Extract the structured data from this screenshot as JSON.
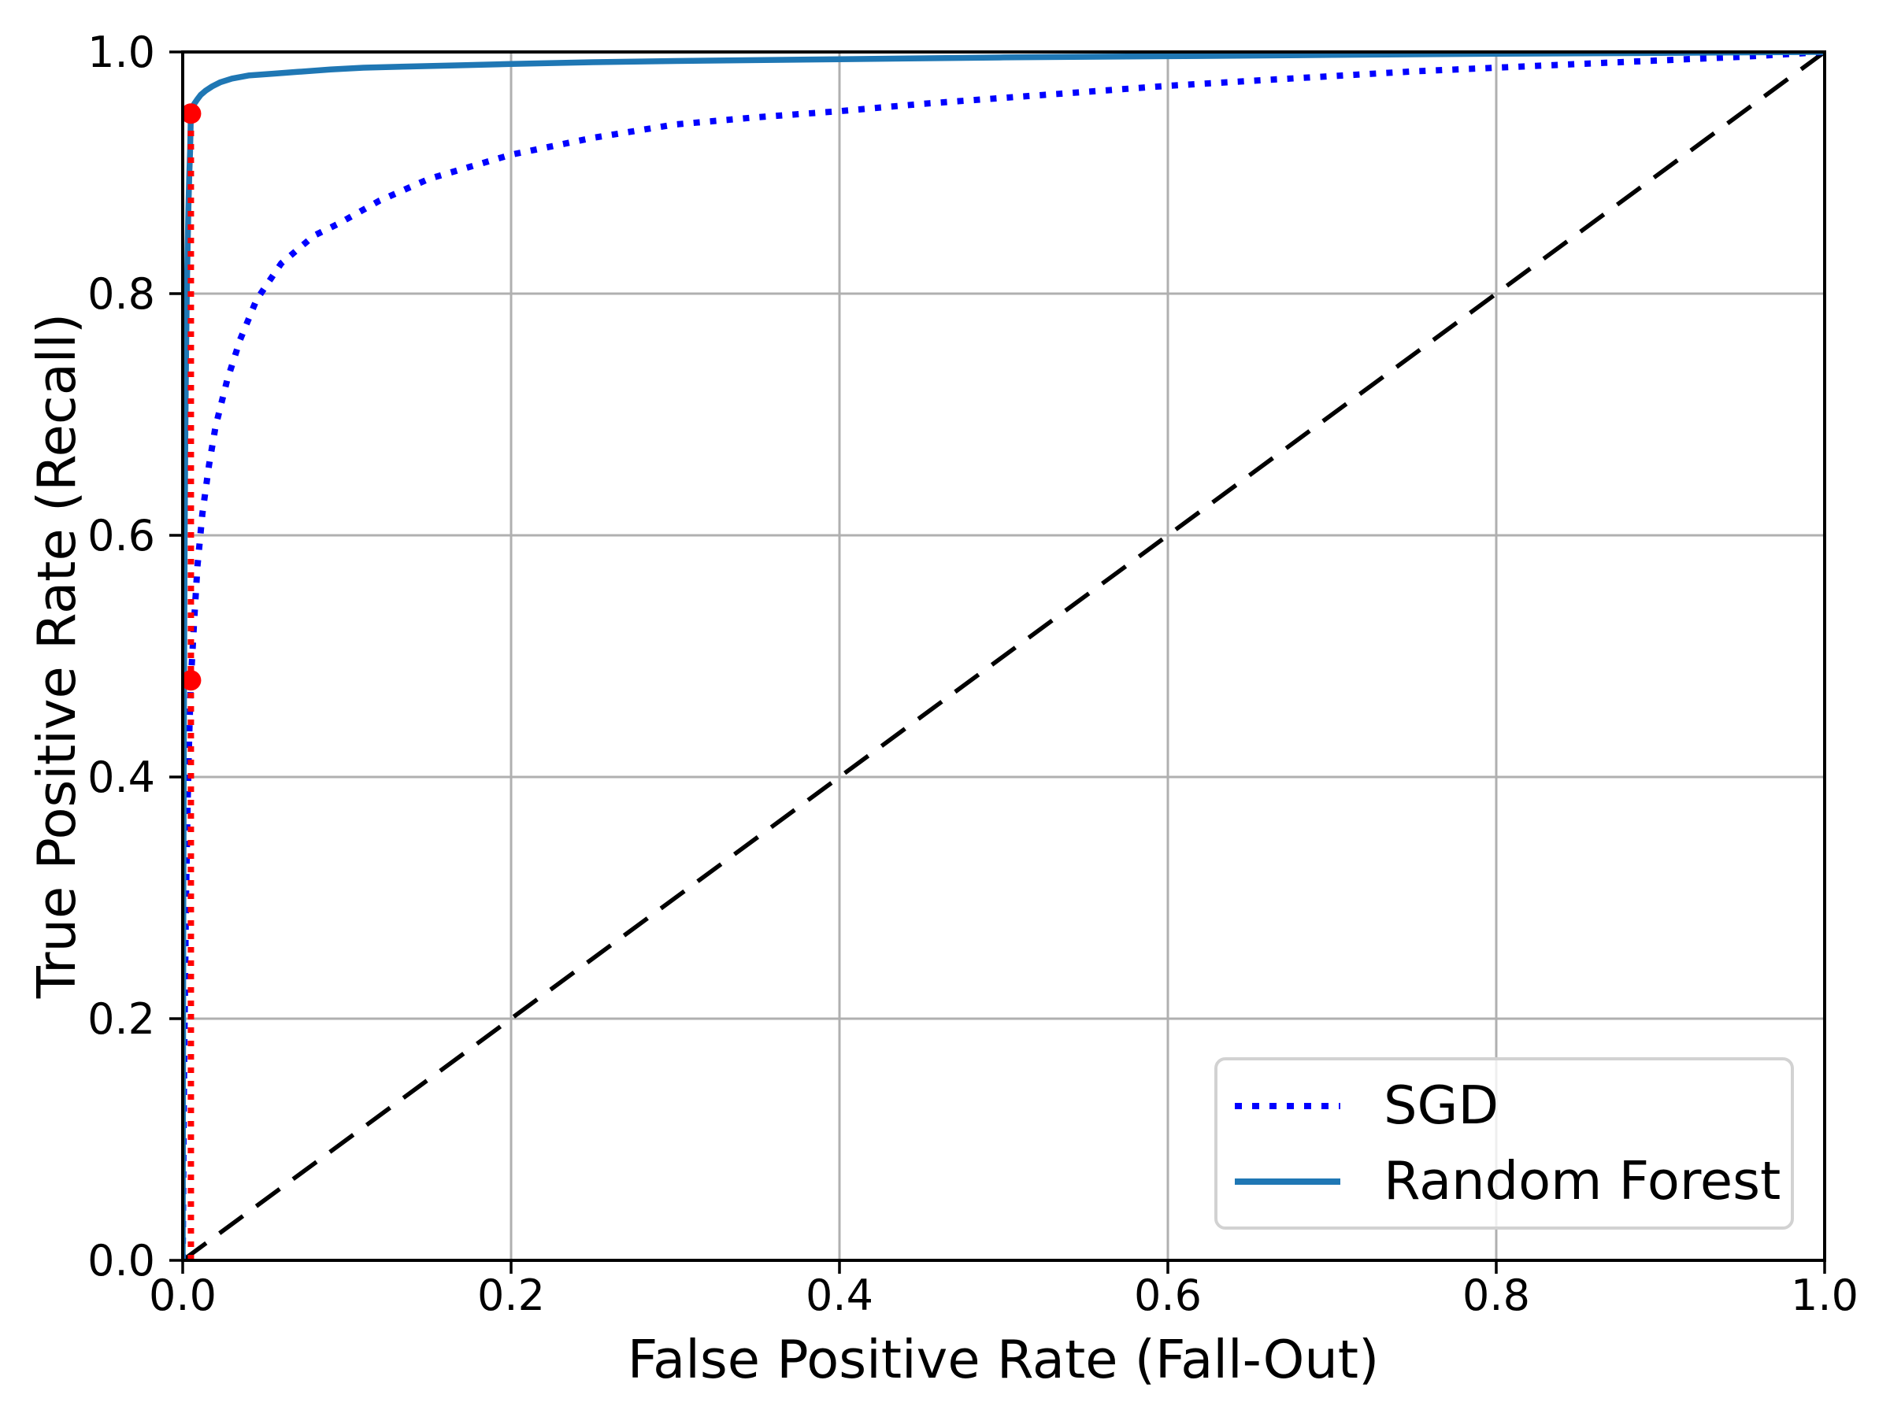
{
  "chart_data": {
    "type": "line",
    "title": "",
    "xlabel": "False Positive Rate (Fall-Out)",
    "ylabel": "True Positive Rate (Recall)",
    "xlim": [
      0.0,
      1.0
    ],
    "ylim": [
      0.0,
      1.0
    ],
    "x_ticks": [
      0.0,
      0.2,
      0.4,
      0.6,
      0.8,
      1.0
    ],
    "x_tick_labels": [
      "0.0",
      "0.2",
      "0.4",
      "0.6",
      "0.8",
      "1.0"
    ],
    "y_ticks": [
      0.0,
      0.2,
      0.4,
      0.6,
      0.8,
      1.0
    ],
    "y_tick_labels": [
      "0.0",
      "0.2",
      "0.4",
      "0.6",
      "0.8",
      "1.0"
    ],
    "grid": true,
    "grid_color": "#b0b0b0",
    "background_color": "#ffffff",
    "spine_color": "#000000",
    "legend": {
      "position": "lower right",
      "entries": [
        {
          "label": "SGD",
          "color": "#0000ff",
          "style": "dotted"
        },
        {
          "label": "Random Forest",
          "color": "#1f77b4",
          "style": "solid"
        }
      ]
    },
    "reference_line": {
      "name": "chance-diagonal",
      "style": "dashed",
      "color": "#000000",
      "from": [
        0.0,
        0.0
      ],
      "to": [
        1.0,
        1.0
      ]
    },
    "threshold_marker": {
      "color": "#ff0000",
      "style": "dotted",
      "x": 0.005,
      "vertical_line": {
        "from_y": 0.0,
        "to_y": 0.949
      },
      "points": [
        {
          "x": 0.005,
          "y": 0.48
        },
        {
          "x": 0.005,
          "y": 0.949
        }
      ]
    },
    "series": [
      {
        "name": "SGD",
        "color": "#0000ff",
        "style": "dotted",
        "points": [
          [
            0.0,
            0.0
          ],
          [
            0.0005,
            0.1
          ],
          [
            0.001,
            0.18
          ],
          [
            0.002,
            0.3
          ],
          [
            0.003,
            0.38
          ],
          [
            0.004,
            0.435
          ],
          [
            0.005,
            0.48
          ],
          [
            0.007,
            0.53
          ],
          [
            0.009,
            0.575
          ],
          [
            0.012,
            0.618
          ],
          [
            0.016,
            0.658
          ],
          [
            0.02,
            0.69
          ],
          [
            0.027,
            0.728
          ],
          [
            0.035,
            0.762
          ],
          [
            0.045,
            0.795
          ],
          [
            0.06,
            0.825
          ],
          [
            0.08,
            0.848
          ],
          [
            0.095,
            0.858
          ],
          [
            0.12,
            0.877
          ],
          [
            0.15,
            0.895
          ],
          [
            0.18,
            0.907
          ],
          [
            0.2,
            0.915
          ],
          [
            0.25,
            0.929
          ],
          [
            0.3,
            0.94
          ],
          [
            0.35,
            0.946
          ],
          [
            0.4,
            0.951
          ],
          [
            0.45,
            0.957
          ],
          [
            0.5,
            0.962
          ],
          [
            0.55,
            0.967
          ],
          [
            0.6,
            0.972
          ],
          [
            0.65,
            0.976
          ],
          [
            0.7,
            0.98
          ],
          [
            0.75,
            0.984
          ],
          [
            0.8,
            0.987
          ],
          [
            0.85,
            0.99
          ],
          [
            0.9,
            0.993
          ],
          [
            0.95,
            0.996
          ],
          [
            1.0,
            1.0
          ]
        ]
      },
      {
        "name": "Random Forest",
        "color": "#1f77b4",
        "style": "solid",
        "points": [
          [
            0.0,
            0.0
          ],
          [
            0.0004,
            0.3
          ],
          [
            0.0008,
            0.48
          ],
          [
            0.0012,
            0.6
          ],
          [
            0.0016,
            0.68
          ],
          [
            0.002,
            0.745
          ],
          [
            0.0025,
            0.8
          ],
          [
            0.003,
            0.84
          ],
          [
            0.0035,
            0.872
          ],
          [
            0.004,
            0.897
          ],
          [
            0.0045,
            0.918
          ],
          [
            0.005,
            0.949
          ],
          [
            0.006,
            0.953
          ],
          [
            0.007,
            0.957
          ],
          [
            0.009,
            0.961
          ],
          [
            0.011,
            0.9645
          ],
          [
            0.014,
            0.968
          ],
          [
            0.018,
            0.9715
          ],
          [
            0.023,
            0.975
          ],
          [
            0.03,
            0.978
          ],
          [
            0.04,
            0.9805
          ],
          [
            0.055,
            0.982
          ],
          [
            0.07,
            0.9835
          ],
          [
            0.09,
            0.9855
          ],
          [
            0.11,
            0.987
          ],
          [
            0.14,
            0.988
          ],
          [
            0.17,
            0.989
          ],
          [
            0.2,
            0.99
          ],
          [
            0.25,
            0.9915
          ],
          [
            0.3,
            0.9925
          ],
          [
            0.4,
            0.994
          ],
          [
            0.5,
            0.9955
          ],
          [
            0.6,
            0.9965
          ],
          [
            0.7,
            0.9975
          ],
          [
            0.8,
            0.9985
          ],
          [
            0.9,
            0.9992
          ],
          [
            1.0,
            1.0
          ]
        ]
      }
    ]
  }
}
